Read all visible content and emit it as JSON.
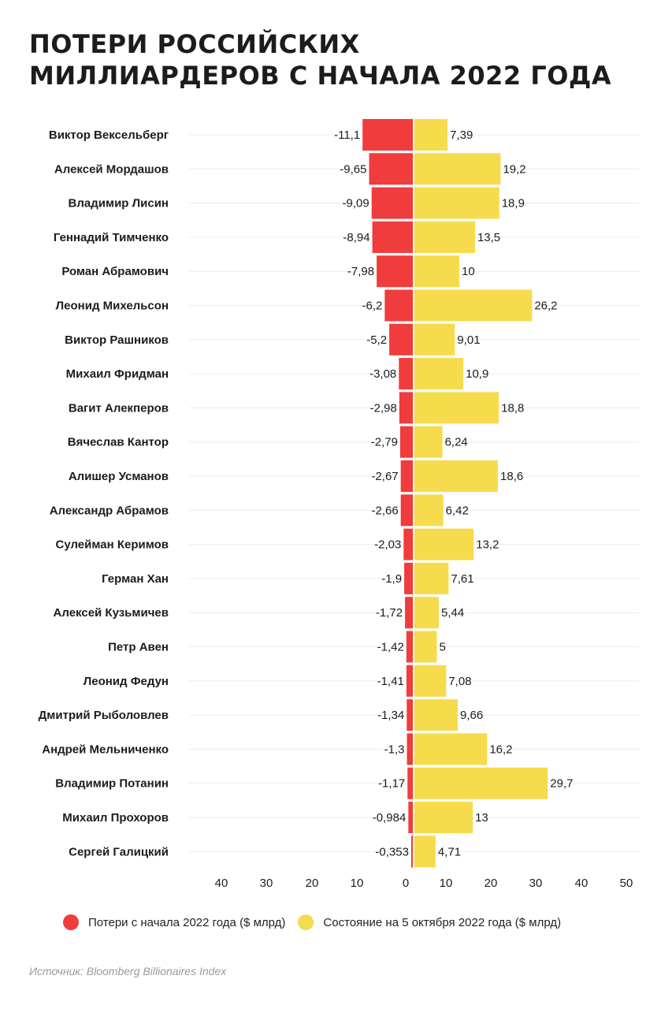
{
  "title_lines": [
    "Потери российских",
    "миллиардеров с начала 2022 года"
  ],
  "chart_data": {
    "type": "bar",
    "orientation": "horizontal",
    "categories": [
      "Виктор Вексельберг",
      "Алексей Мордашов",
      "Владимир Лисин",
      "Геннадий Тимченко",
      "Роман Абрамович",
      "Леонид Михельсон",
      "Виктор Рашников",
      "Михаил Фридман",
      "Вагит Алекперов",
      "Вячеслав Кантор",
      "Алишер Усманов",
      "Александр Абрамов",
      "Сулейман Керимов",
      "Герман Хан",
      "Алексей Кузьмичев",
      "Петр Авен",
      "Леонид Федун",
      "Дмитрий Рыболовлев",
      "Андрей Мельниченко",
      "Владимир Потанин",
      "Михаил Прохоров",
      "Сергей Галицкий"
    ],
    "series": [
      {
        "name": "Потери с начала 2022 года ($ млрд)",
        "color": "#f03c3c",
        "values": [
          -11.1,
          -9.65,
          -9.09,
          -8.94,
          -7.98,
          -6.2,
          -5.2,
          -3.08,
          -2.98,
          -2.79,
          -2.67,
          -2.66,
          -2.03,
          -1.9,
          -1.72,
          -1.42,
          -1.41,
          -1.34,
          -1.3,
          -1.17,
          -0.984,
          -0.353
        ],
        "labels": [
          "-11,1",
          "-9,65",
          "-9,09",
          "-8,94",
          "-7,98",
          "-6,2",
          "-5,2",
          "-3,08",
          "-2,98",
          "-2,79",
          "-2,67",
          "-2,66",
          "-2,03",
          "-1,9",
          "-1,72",
          "-1,42",
          "-1,41",
          "-1,34",
          "-1,3",
          "-1,17",
          "-0,984",
          "-0,353"
        ]
      },
      {
        "name": "Состояние на 5 октября 2022 года ($ млрд)",
        "color": "#f6db4c",
        "values": [
          7.39,
          19.2,
          18.9,
          13.5,
          10,
          26.2,
          9.01,
          10.9,
          18.8,
          6.24,
          18.6,
          6.42,
          13.2,
          7.61,
          5.44,
          5,
          7.08,
          9.66,
          16.2,
          29.7,
          13,
          4.71
        ],
        "labels": [
          "7,39",
          "19,2",
          "18,9",
          "13,5",
          "10",
          "26,2",
          "9,01",
          "10,9",
          "18,8",
          "6,24",
          "18,6",
          "6,42",
          "13,2",
          "7,61",
          "5,44",
          "5",
          "7,08",
          "9,66",
          "16,2",
          "29,7",
          "13",
          "4,71"
        ]
      }
    ],
    "xlim_negative": [
      -40,
      0
    ],
    "xlim_positive": [
      0,
      50
    ],
    "ticks_negative": [
      40,
      30,
      20,
      10,
      0
    ],
    "ticks_positive": [
      10,
      20,
      30,
      40,
      50
    ],
    "grid": true,
    "legend_position": "bottom"
  },
  "legend": [
    {
      "label": "Потери с начала 2022 года ($ млрд)",
      "color": "#f03c3c"
    },
    {
      "label": "Состояние на 5 октября 2022 года ($ млрд)",
      "color": "#f6db4c"
    }
  ],
  "source": "Источник: Bloomberg Billionaires Index"
}
